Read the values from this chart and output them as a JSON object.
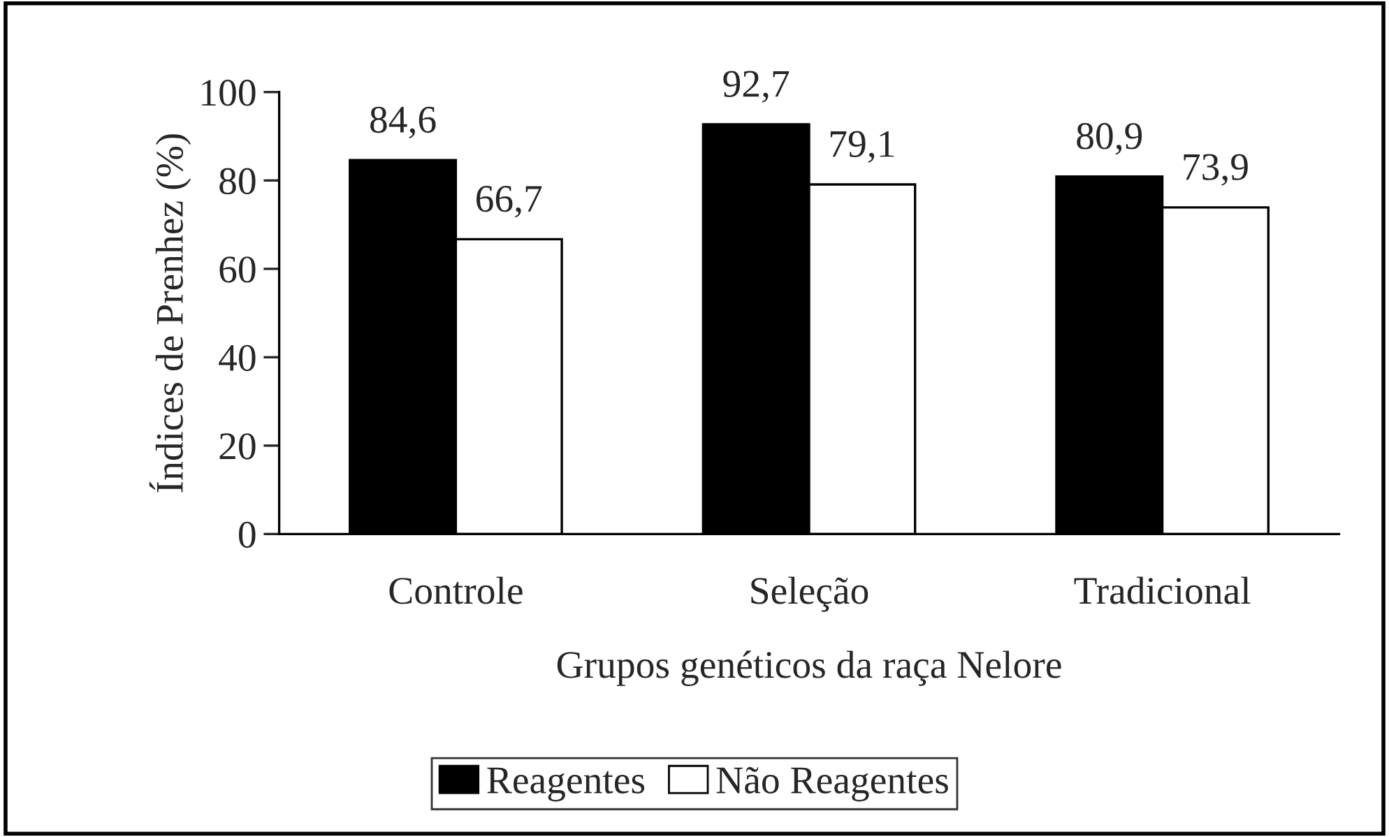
{
  "chart_data": {
    "type": "bar",
    "xlabel": "Grupos genéticos da raça Nelore",
    "ylabel": "Índices de Prenhez (%)",
    "categories": [
      "Controle",
      "Seleção",
      "Tradicional"
    ],
    "series": [
      {
        "name": "Reagentes",
        "color": "#000000",
        "values": [
          84.6,
          92.7,
          80.9
        ],
        "value_labels": [
          "84,6",
          "92,7",
          "80,9"
        ]
      },
      {
        "name": "Não Reagentes",
        "color": "#ffffff",
        "values": [
          66.7,
          79.1,
          73.9
        ],
        "value_labels": [
          "66,7",
          "79,1",
          "73,9"
        ]
      }
    ],
    "ylim": [
      0,
      100
    ],
    "yticks": [
      0,
      20,
      40,
      60,
      80,
      100
    ],
    "grid": false,
    "legend": "bottom"
  }
}
